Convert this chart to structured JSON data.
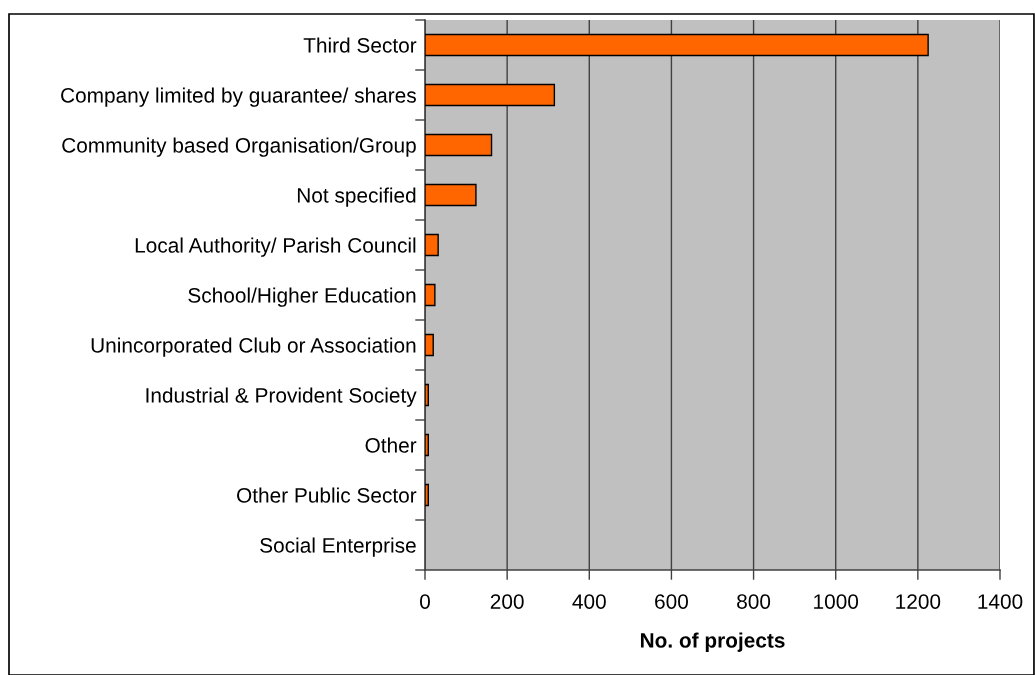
{
  "chart_data": {
    "type": "bar",
    "orientation": "horizontal",
    "categories": [
      "Third Sector",
      "Company limited by guarantee/ shares",
      "Community based Organisation/Group",
      "Not specified",
      "Local Authority/ Parish Council",
      "School/Higher Education",
      "Unincorporated Club or Association",
      "Industrial & Provident Society",
      "Other",
      "Other Public Sector",
      "Social Enterprise"
    ],
    "values": [
      1225,
      315,
      162,
      124,
      32,
      24,
      20,
      8,
      8,
      8,
      null
    ],
    "color": "#ff6600",
    "xlabel": "No. of projects",
    "xlim": [
      0,
      1400
    ],
    "xticks": [
      0,
      200,
      400,
      600,
      800,
      1000,
      1200,
      1400
    ],
    "grid": "x"
  }
}
